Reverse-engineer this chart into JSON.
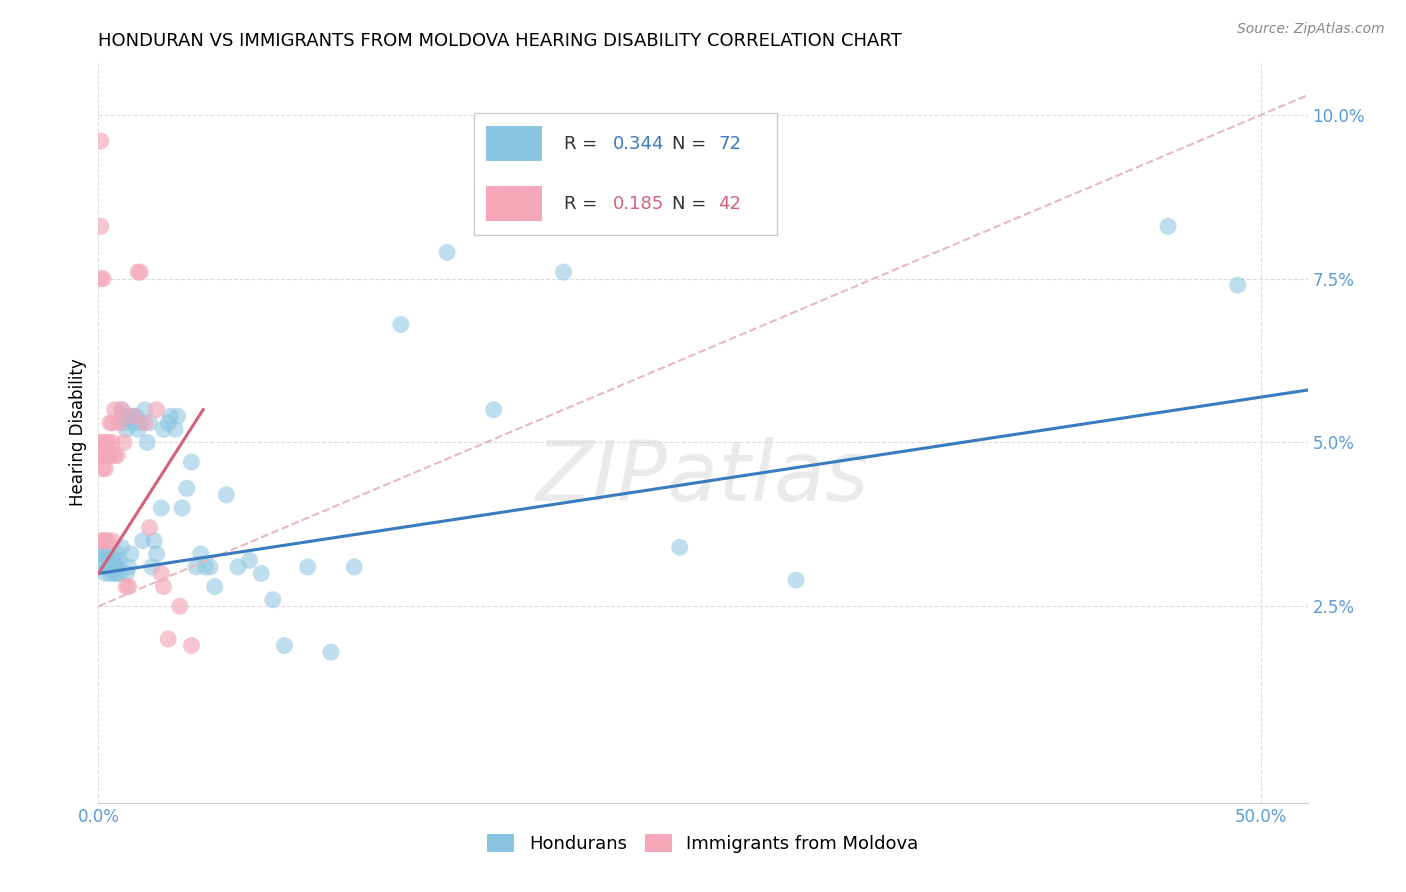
{
  "title": "HONDURAN VS IMMIGRANTS FROM MOLDOVA HEARING DISABILITY CORRELATION CHART",
  "source": "Source: ZipAtlas.com",
  "ylabel": "Hearing Disability",
  "watermark": "ZIPatlas",
  "xlim": [
    0.0,
    0.52
  ],
  "ylim": [
    -0.005,
    0.108
  ],
  "xticks": [
    0.0,
    0.5
  ],
  "xtick_labels": [
    "0.0%",
    "50.0%"
  ],
  "yticks": [
    0.025,
    0.05,
    0.075,
    0.1
  ],
  "ytick_labels": [
    "2.5%",
    "5.0%",
    "7.5%",
    "10.0%"
  ],
  "blue_color": "#89c4e1",
  "pink_color": "#f4a7b9",
  "blue_line_color": "#3a7abf",
  "pink_line_color": "#d4607a",
  "dashed_line_color": "#e8b8c0",
  "legend_R_blue": "0.344",
  "legend_N_blue": "72",
  "legend_R_pink": "0.185",
  "legend_N_pink": "42",
  "blue_scatter_x": [
    0.001,
    0.002,
    0.002,
    0.003,
    0.003,
    0.004,
    0.004,
    0.005,
    0.005,
    0.005,
    0.006,
    0.006,
    0.007,
    0.007,
    0.007,
    0.008,
    0.008,
    0.008,
    0.009,
    0.009,
    0.01,
    0.01,
    0.011,
    0.011,
    0.012,
    0.012,
    0.013,
    0.013,
    0.014,
    0.015,
    0.015,
    0.016,
    0.017,
    0.018,
    0.019,
    0.02,
    0.021,
    0.022,
    0.023,
    0.024,
    0.025,
    0.027,
    0.028,
    0.03,
    0.031,
    0.033,
    0.034,
    0.036,
    0.038,
    0.04,
    0.042,
    0.044,
    0.046,
    0.048,
    0.05,
    0.055,
    0.06,
    0.065,
    0.07,
    0.075,
    0.08,
    0.09,
    0.1,
    0.11,
    0.13,
    0.15,
    0.17,
    0.2,
    0.25,
    0.3,
    0.46,
    0.49
  ],
  "blue_scatter_y": [
    0.033,
    0.031,
    0.033,
    0.03,
    0.032,
    0.031,
    0.033,
    0.03,
    0.031,
    0.032,
    0.031,
    0.032,
    0.03,
    0.031,
    0.032,
    0.03,
    0.031,
    0.033,
    0.03,
    0.032,
    0.034,
    0.055,
    0.053,
    0.054,
    0.052,
    0.03,
    0.054,
    0.031,
    0.033,
    0.054,
    0.053,
    0.054,
    0.052,
    0.053,
    0.035,
    0.055,
    0.05,
    0.053,
    0.031,
    0.035,
    0.033,
    0.04,
    0.052,
    0.053,
    0.054,
    0.052,
    0.054,
    0.04,
    0.043,
    0.047,
    0.031,
    0.033,
    0.031,
    0.031,
    0.028,
    0.042,
    0.031,
    0.032,
    0.03,
    0.026,
    0.019,
    0.031,
    0.018,
    0.031,
    0.068,
    0.079,
    0.055,
    0.076,
    0.034,
    0.029,
    0.083,
    0.074
  ],
  "pink_scatter_x": [
    0.001,
    0.001,
    0.001,
    0.001,
    0.001,
    0.001,
    0.002,
    0.002,
    0.002,
    0.002,
    0.002,
    0.003,
    0.003,
    0.003,
    0.003,
    0.004,
    0.004,
    0.004,
    0.005,
    0.005,
    0.006,
    0.006,
    0.006,
    0.007,
    0.007,
    0.008,
    0.009,
    0.01,
    0.011,
    0.012,
    0.013,
    0.015,
    0.017,
    0.018,
    0.02,
    0.022,
    0.025,
    0.027,
    0.028,
    0.03,
    0.035,
    0.04
  ],
  "pink_scatter_y": [
    0.096,
    0.083,
    0.075,
    0.05,
    0.048,
    0.035,
    0.075,
    0.05,
    0.048,
    0.046,
    0.035,
    0.05,
    0.048,
    0.046,
    0.035,
    0.05,
    0.048,
    0.035,
    0.053,
    0.048,
    0.053,
    0.05,
    0.035,
    0.055,
    0.048,
    0.048,
    0.053,
    0.055,
    0.05,
    0.028,
    0.028,
    0.054,
    0.076,
    0.076,
    0.053,
    0.037,
    0.055,
    0.03,
    0.028,
    0.02,
    0.025,
    0.019
  ],
  "blue_line_x": [
    0.0,
    0.52
  ],
  "blue_line_y": [
    0.03,
    0.058
  ],
  "pink_line_x": [
    0.0,
    0.045
  ],
  "pink_line_y": [
    0.03,
    0.055
  ],
  "dashed_line_x": [
    0.0,
    0.52
  ],
  "dashed_line_y": [
    0.025,
    0.103
  ],
  "background_color": "#ffffff",
  "grid_color": "#dddddd",
  "title_fontsize": 13,
  "axis_label_fontsize": 12,
  "tick_fontsize": 12,
  "tick_color": "#5b9bd5",
  "legend_fontsize": 13
}
